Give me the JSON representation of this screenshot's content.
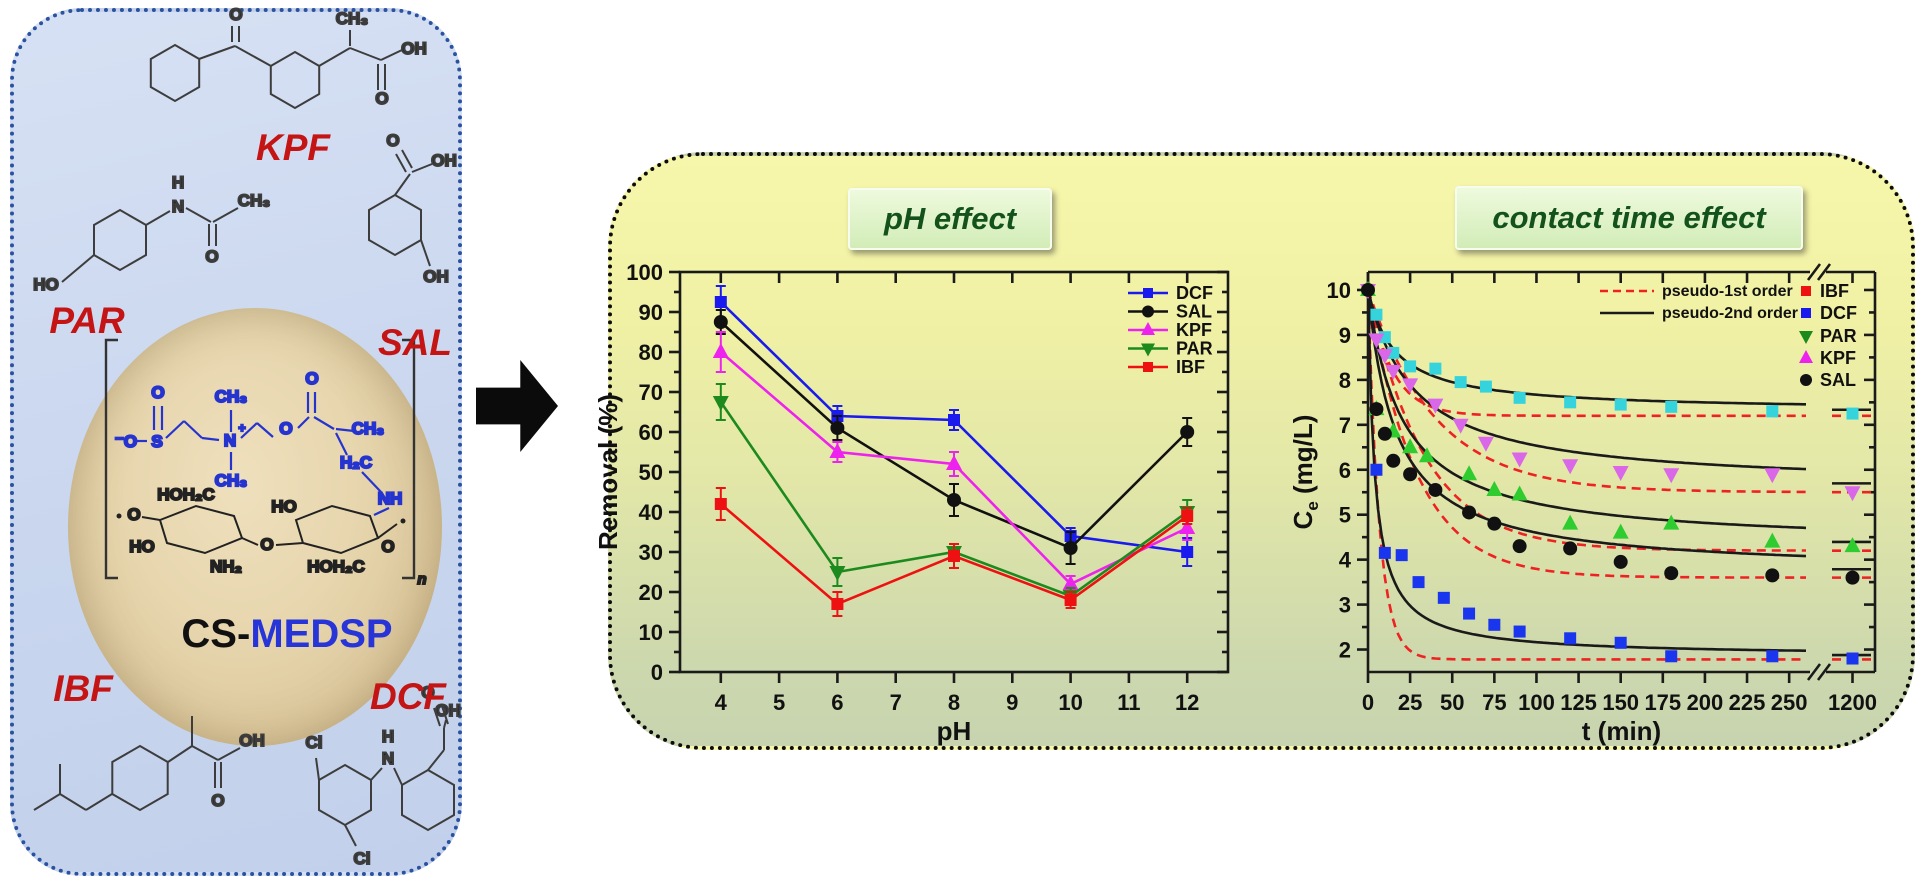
{
  "colors": {
    "left_panel_border": "#2a52a0",
    "right_panel_border": "#0c0c0c",
    "drug_label_red": "#c41414",
    "title_green": "#14521c",
    "medsp_blue": "#2634d8"
  },
  "left_panel": {
    "material_label": {
      "cs": "CS-",
      "medsp": "MEDSP"
    },
    "molecules": {
      "kpf": {
        "label": "KPF",
        "atoms": [
          "O",
          "CH₃",
          "OH",
          "O"
        ]
      },
      "par": {
        "label": "PAR",
        "atoms": [
          "HO",
          "H",
          "N",
          "O",
          "CH₃"
        ]
      },
      "sal": {
        "label": "SAL",
        "atoms": [
          "O",
          "OH",
          "OH"
        ]
      },
      "ibf": {
        "label": "IBF",
        "atoms": [
          "O",
          "OH"
        ]
      },
      "dcf": {
        "label": "DCF",
        "atoms": [
          "Cl",
          "H",
          "N",
          "Cl",
          "O",
          "OH"
        ]
      },
      "medsp": {
        "atoms": [
          "O",
          "⁻O",
          "S",
          "CH₃",
          "N",
          "+",
          "CH₃",
          "O",
          "O",
          "CH₃",
          "H₂C",
          "NH"
        ]
      },
      "chitosan": {
        "atoms": [
          "O",
          "HOH₂C",
          "HO",
          "NH₂",
          "O",
          "HO",
          "HOH₂C",
          "O",
          "n"
        ]
      }
    }
  },
  "chart_data": [
    {
      "type": "line",
      "title": "pH effect",
      "xlabel": "pH",
      "ylabel": "Removal (%)",
      "x": [
        4,
        6,
        8,
        10,
        12
      ],
      "xticks": [
        4,
        5,
        6,
        7,
        8,
        9,
        10,
        11,
        12
      ],
      "ylim": [
        0,
        100
      ],
      "ytick_step": 10,
      "grid": false,
      "legend_position": "top-right",
      "series": [
        {
          "name": "DCF",
          "color": "#1a1aee",
          "marker": "square",
          "values": [
            92.5,
            64,
            63,
            34,
            30
          ],
          "errors": [
            4,
            2.5,
            2.5,
            2,
            3.5
          ]
        },
        {
          "name": "SAL",
          "color": "#111111",
          "marker": "circle",
          "values": [
            87.5,
            61,
            43,
            31,
            60
          ],
          "errors": [
            3,
            3,
            4,
            4,
            3.5
          ]
        },
        {
          "name": "KPF",
          "color": "#ee22ee",
          "marker": "triangle-up",
          "values": [
            80,
            55,
            52,
            22,
            36
          ],
          "errors": [
            5,
            2.5,
            3,
            2,
            3
          ]
        },
        {
          "name": "PAR",
          "color": "#1d8a1d",
          "marker": "triangle-down",
          "values": [
            67.5,
            25,
            30,
            19,
            40
          ],
          "errors": [
            4.5,
            3.5,
            2,
            2,
            3
          ]
        },
        {
          "name": "IBF",
          "color": "#ee1111",
          "marker": "square",
          "values": [
            42,
            17,
            29,
            18,
            39
          ],
          "errors": [
            4,
            3,
            3,
            2,
            2
          ]
        }
      ]
    },
    {
      "type": "scatter-with-fits",
      "title": "contact time effect",
      "xlabel": "t (min)",
      "ylabel_prefix": "C",
      "ylabel_sub": "e",
      "ylabel_rest": " (mg/L)",
      "xticks": [
        0,
        25,
        50,
        75,
        100,
        125,
        150,
        175,
        200,
        225,
        250
      ],
      "xtick_after_break": 1200,
      "axis_break": true,
      "ylim": [
        1.5,
        10.4
      ],
      "yticks": [
        2,
        3,
        4,
        5,
        6,
        7,
        8,
        9,
        10
      ],
      "fit_legend": [
        {
          "label": "pseudo-1st order",
          "style": "dashed",
          "color": "#ee2222"
        },
        {
          "label": "pseudo-2nd order",
          "style": "solid",
          "color": "#1a1a1a"
        }
      ],
      "series": [
        {
          "name": "IBF",
          "legend_color": "#ee1111",
          "legend_marker": "square",
          "point_color": "#35d4dd",
          "marker": "square",
          "t": [
            0,
            5,
            10,
            15,
            25,
            40,
            55,
            70,
            90,
            120,
            150,
            180,
            240
          ],
          "y": [
            10,
            9.45,
            8.95,
            8.6,
            8.3,
            8.25,
            7.95,
            7.85,
            7.6,
            7.5,
            7.45,
            7.4,
            7.3
          ],
          "t_end": 1200,
          "y_end": 7.25,
          "fit1": {
            "ce": 7.2,
            "k": 0.07
          },
          "fit2": {
            "ce": 7.3,
            "k": 0.063
          }
        },
        {
          "name": "DCF",
          "legend_color": "#1a1aee",
          "legend_marker": "square",
          "point_color": "#1a35ee",
          "marker": "square",
          "t": [
            0,
            5,
            10,
            20,
            30,
            45,
            60,
            75,
            90,
            120,
            150,
            180,
            240
          ],
          "y": [
            10,
            6.0,
            4.15,
            4.1,
            3.5,
            3.15,
            2.8,
            2.55,
            2.4,
            2.25,
            2.15,
            1.85,
            1.85
          ],
          "t_end": 1200,
          "y_end": 1.8,
          "fit1": {
            "ce": 1.78,
            "k": 0.15
          },
          "fit2": {
            "ce": 1.85,
            "k": 0.25
          }
        },
        {
          "name": "PAR",
          "legend_color": "#1d8a1d",
          "legend_marker": "triangle-down",
          "point_color": "#2ecc2e",
          "marker": "triangle-up",
          "t": [
            0,
            5,
            15,
            25,
            35,
            60,
            75,
            90,
            120,
            150,
            180,
            240
          ],
          "y": [
            10,
            7.35,
            6.85,
            6.5,
            6.3,
            5.9,
            5.55,
            5.45,
            4.8,
            4.6,
            4.8,
            4.4
          ],
          "t_end": 1200,
          "y_end": 4.3,
          "fit1": {
            "ce": 4.2,
            "k": 0.03
          },
          "fit2": {
            "ce": 4.3,
            "k": 0.05
          }
        },
        {
          "name": "KPF",
          "legend_color": "#ee22ee",
          "legend_marker": "triangle-up",
          "point_color": "#d967e8",
          "marker": "triangle-down",
          "t": [
            0,
            5,
            10,
            15,
            25,
            40,
            55,
            70,
            90,
            120,
            150,
            180,
            240
          ],
          "y": [
            10,
            8.9,
            8.55,
            8.2,
            7.9,
            7.45,
            7.0,
            6.6,
            6.25,
            6.1,
            5.95,
            5.9,
            5.9
          ],
          "t_end": 1200,
          "y_end": 5.5,
          "fit1": {
            "ce": 5.5,
            "k": 0.025
          },
          "fit2": {
            "ce": 5.6,
            "k": 0.037
          }
        },
        {
          "name": "SAL",
          "legend_color": "#111111",
          "legend_marker": "circle",
          "point_color": "#111111",
          "marker": "circle",
          "t": [
            0,
            5,
            10,
            15,
            25,
            40,
            60,
            75,
            90,
            120,
            150,
            180,
            240
          ],
          "y": [
            10,
            7.35,
            6.8,
            6.2,
            5.9,
            5.55,
            5.05,
            4.8,
            4.3,
            4.25,
            3.95,
            3.7,
            3.65
          ],
          "t_end": 1200,
          "y_end": 3.6,
          "fit1": {
            "ce": 3.6,
            "k": 0.035
          },
          "fit2": {
            "ce": 3.7,
            "k": 0.06
          }
        }
      ]
    }
  ]
}
